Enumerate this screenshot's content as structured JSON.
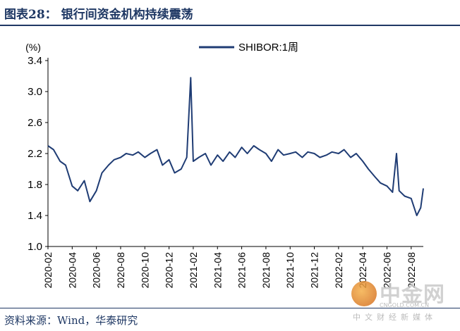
{
  "header": {
    "title": "图表28：  银行间资金机构持续震荡"
  },
  "footer": {
    "source": "资料来源：Wind，华泰研究"
  },
  "watermark": {
    "brand": "中金网",
    "url": "CNGOLD.COM.CN",
    "tagline": "中文财经新媒体"
  },
  "colors": {
    "line": "#1f3c74",
    "title": "#1f3864"
  },
  "chart_data": {
    "type": "line",
    "title": "",
    "ylabel": "(%)",
    "xlabel": "",
    "ylim": [
      1.0,
      3.4
    ],
    "yticks": [
      1.0,
      1.4,
      1.8,
      2.2,
      2.6,
      3.0,
      3.4
    ],
    "xlim": [
      "2020-02",
      "2022-09"
    ],
    "xticks": [
      "2020-02",
      "2020-04",
      "2020-06",
      "2020-08",
      "2020-10",
      "2020-12",
      "2021-02",
      "2021-04",
      "2021-06",
      "2021-08",
      "2021-10",
      "2021-12",
      "2022-02",
      "2022-04",
      "2022-06",
      "2022-08"
    ],
    "legend_position": "top-center",
    "grid": false,
    "series": [
      {
        "name": "SHIBOR:1周",
        "x": [
          "2020-02-01",
          "2020-02-15",
          "2020-03-01",
          "2020-03-15",
          "2020-04-01",
          "2020-04-15",
          "2020-05-01",
          "2020-05-15",
          "2020-06-01",
          "2020-06-15",
          "2020-07-01",
          "2020-07-15",
          "2020-08-01",
          "2020-08-15",
          "2020-09-01",
          "2020-09-15",
          "2020-10-01",
          "2020-10-15",
          "2020-11-01",
          "2020-11-15",
          "2020-12-01",
          "2020-12-15",
          "2021-01-01",
          "2021-01-15",
          "2021-01-25",
          "2021-02-01",
          "2021-02-15",
          "2021-03-01",
          "2021-03-15",
          "2021-04-01",
          "2021-04-15",
          "2021-05-01",
          "2021-05-15",
          "2021-06-01",
          "2021-06-15",
          "2021-07-01",
          "2021-07-15",
          "2021-08-01",
          "2021-08-15",
          "2021-09-01",
          "2021-09-15",
          "2021-10-01",
          "2021-10-15",
          "2021-11-01",
          "2021-11-15",
          "2021-12-01",
          "2021-12-15",
          "2022-01-01",
          "2022-01-15",
          "2022-02-01",
          "2022-02-15",
          "2022-03-01",
          "2022-03-15",
          "2022-04-01",
          "2022-04-15",
          "2022-05-01",
          "2022-05-15",
          "2022-06-01",
          "2022-06-15",
          "2022-06-25",
          "2022-07-01",
          "2022-07-15",
          "2022-08-01",
          "2022-08-15",
          "2022-08-25",
          "2022-09-01"
        ],
        "values": [
          2.3,
          2.25,
          2.1,
          2.05,
          1.78,
          1.72,
          1.85,
          1.58,
          1.72,
          1.95,
          2.05,
          2.12,
          2.15,
          2.2,
          2.18,
          2.22,
          2.15,
          2.2,
          2.25,
          2.05,
          2.12,
          1.95,
          2.0,
          2.15,
          3.18,
          2.1,
          2.15,
          2.2,
          2.05,
          2.18,
          2.1,
          2.22,
          2.15,
          2.28,
          2.2,
          2.3,
          2.25,
          2.2,
          2.1,
          2.25,
          2.18,
          2.2,
          2.22,
          2.15,
          2.22,
          2.2,
          2.15,
          2.18,
          2.22,
          2.2,
          2.25,
          2.15,
          2.2,
          2.1,
          2.0,
          1.9,
          1.82,
          1.78,
          1.7,
          2.2,
          1.72,
          1.65,
          1.62,
          1.4,
          1.5,
          1.75
        ]
      }
    ]
  }
}
